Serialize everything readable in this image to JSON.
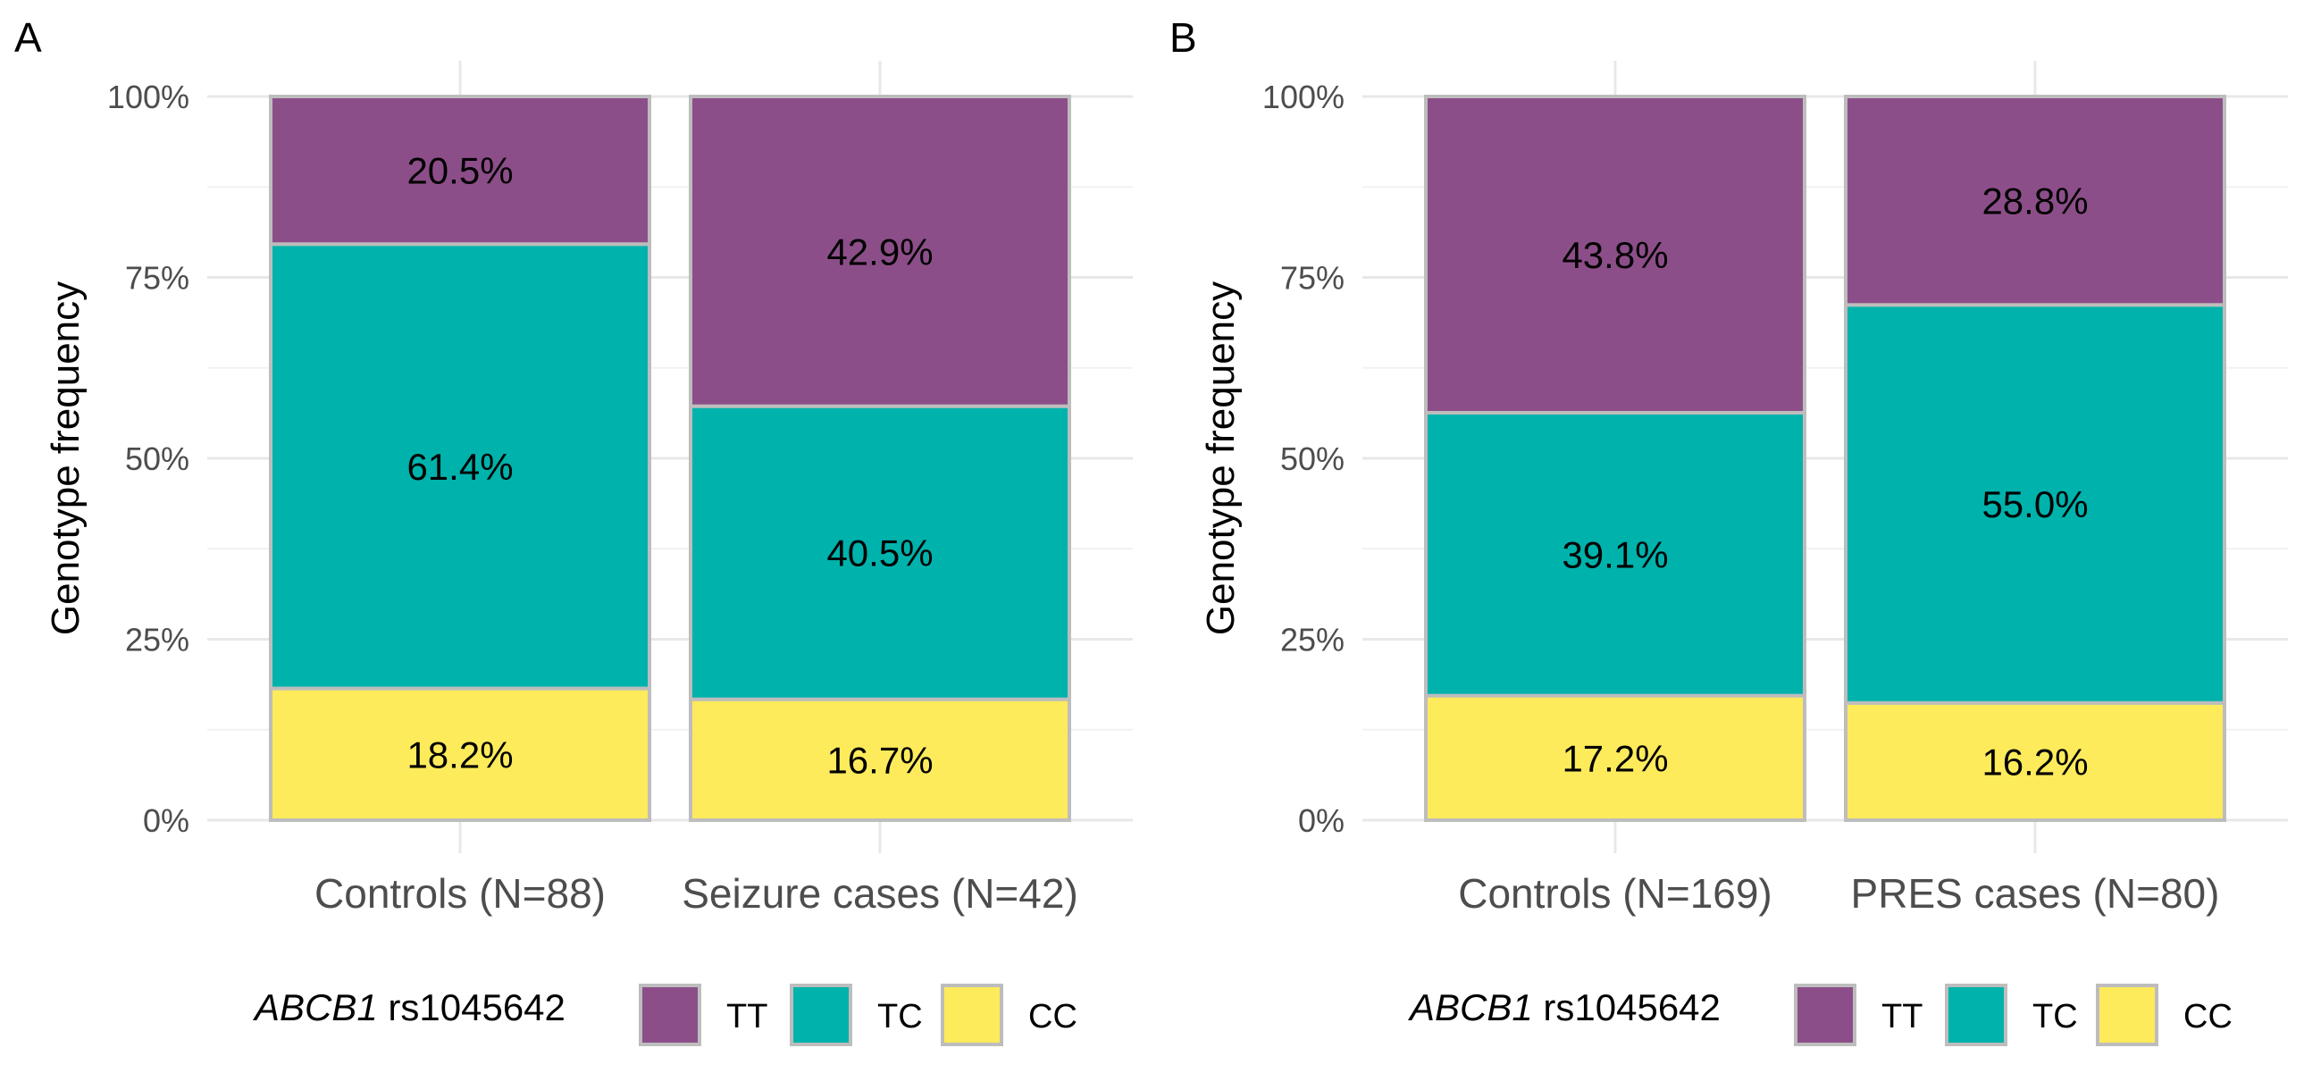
{
  "chart_data": [
    {
      "type": "bar",
      "stacked": true,
      "panel_label": "A",
      "ylabel": "Genotype frequency",
      "ylim": [
        0,
        100
      ],
      "yticks": [
        "0%",
        "25%",
        "50%",
        "75%",
        "100%"
      ],
      "categories": [
        "Controls (N=88)",
        "Seizure cases (N=42)"
      ],
      "series": [
        {
          "name": "CC",
          "values": [
            18.2,
            16.7
          ],
          "labels": [
            "18.2%",
            "16.7%"
          ]
        },
        {
          "name": "TC",
          "values": [
            61.4,
            40.5
          ],
          "labels": [
            "61.4%",
            "40.5%"
          ]
        },
        {
          "name": "TT",
          "values": [
            20.5,
            42.9
          ],
          "labels": [
            "20.5%",
            "42.9%"
          ]
        }
      ],
      "legend": {
        "title_gene": "ABCB1",
        "title_snp": " rs1045642",
        "entries": [
          "TT",
          "TC",
          "CC"
        ],
        "placement": "bottom"
      }
    },
    {
      "type": "bar",
      "stacked": true,
      "panel_label": "B",
      "ylabel": "Genotype frequency",
      "ylim": [
        0,
        100
      ],
      "yticks": [
        "0%",
        "25%",
        "50%",
        "75%",
        "100%"
      ],
      "categories": [
        "Controls (N=169)",
        "PRES cases (N=80)"
      ],
      "series": [
        {
          "name": "CC",
          "values": [
            17.2,
            16.2
          ],
          "labels": [
            "17.2%",
            "16.2%"
          ]
        },
        {
          "name": "TC",
          "values": [
            39.1,
            55.0
          ],
          "labels": [
            "39.1%",
            "55.0%"
          ]
        },
        {
          "name": "TT",
          "values": [
            43.8,
            28.8
          ],
          "labels": [
            "43.8%",
            "28.8%"
          ]
        }
      ],
      "legend": {
        "title_gene": "ABCB1",
        "title_snp": " rs1045642",
        "entries": [
          "TT",
          "TC",
          "CC"
        ],
        "placement": "bottom"
      }
    }
  ],
  "colors": {
    "TT": "#8c4e89",
    "TC": "#00b2ac",
    "CC": "#feeb5b",
    "bar_outline": "#bdbdbd"
  }
}
